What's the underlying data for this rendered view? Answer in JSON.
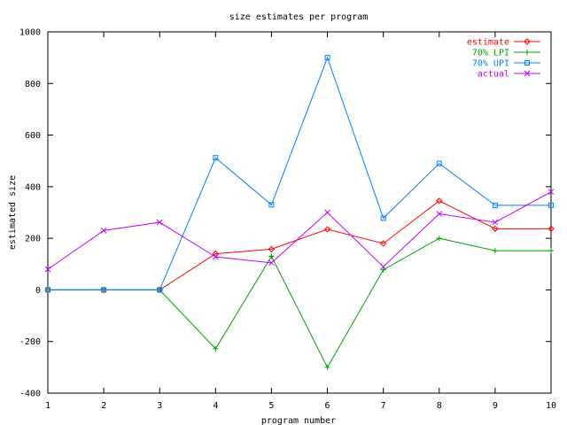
{
  "chart_data": {
    "type": "line",
    "title": "size estimates per program",
    "xlabel": "program number",
    "ylabel": "estimated size",
    "xlim": [
      1,
      10
    ],
    "ylim": [
      -400,
      1000
    ],
    "x_ticks": [
      1,
      2,
      3,
      4,
      5,
      6,
      7,
      8,
      9,
      10
    ],
    "y_ticks": [
      -400,
      -200,
      0,
      200,
      400,
      600,
      800,
      1000
    ],
    "grid": false,
    "legend_position": "top-right",
    "x": [
      1,
      2,
      3,
      4,
      5,
      6,
      7,
      8,
      9,
      10
    ],
    "series": [
      {
        "name": "estimate",
        "color": "#ff0000",
        "marker": "diamond",
        "values": [
          0,
          0,
          0,
          140,
          158,
          235,
          180,
          345,
          237,
          237
        ]
      },
      {
        "name": "70% LPI",
        "color": "#00a000",
        "marker": "plus",
        "values": [
          0,
          0,
          0,
          -228,
          130,
          -300,
          78,
          200,
          152,
          152
        ]
      },
      {
        "name": "70% UPI",
        "color": "#0080ff",
        "marker": "square",
        "values": [
          0,
          0,
          0,
          512,
          330,
          900,
          278,
          490,
          328,
          328
        ]
      },
      {
        "name": "actual",
        "color": "#c000ff",
        "marker": "x",
        "values": [
          80,
          230,
          262,
          128,
          105,
          300,
          90,
          295,
          262,
          380
        ]
      }
    ]
  }
}
